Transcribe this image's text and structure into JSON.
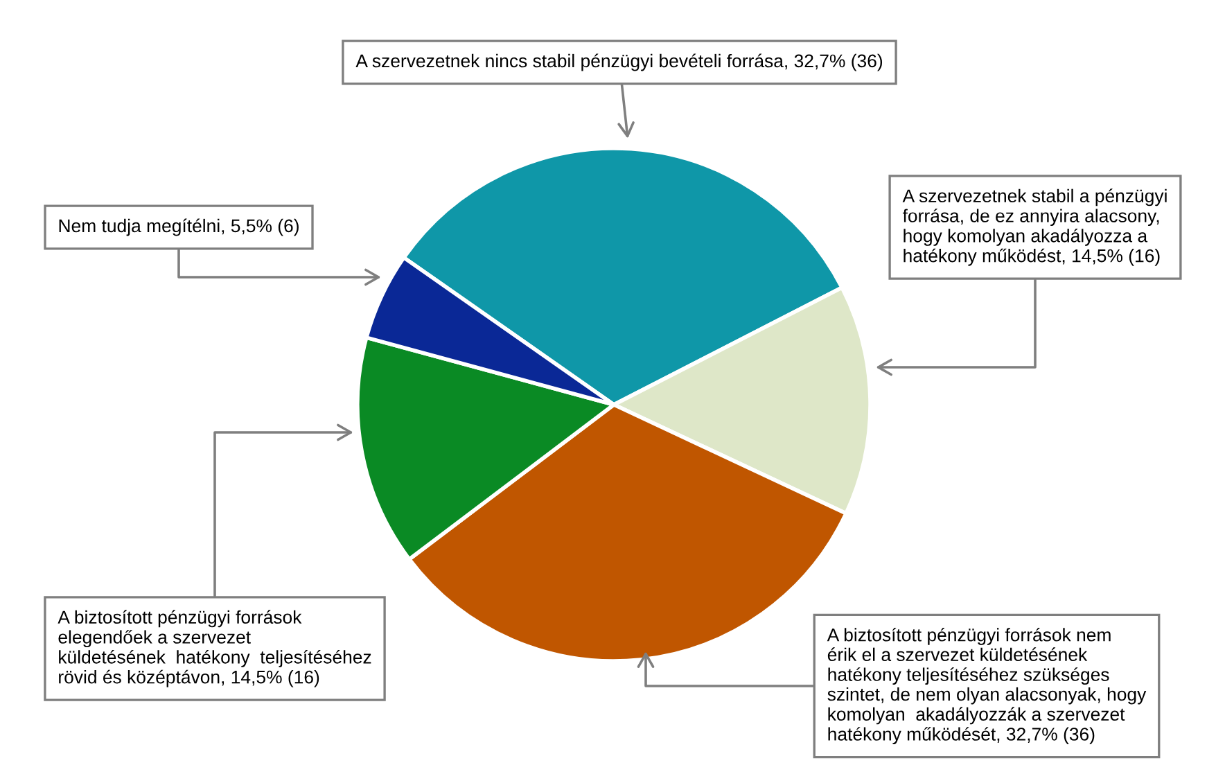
{
  "chart_data": {
    "type": "pie",
    "categories": [
      "A szervezetnek nincs stabil pénzügyi bevételi forrása, 32,7% (36)",
      "A szervezetnek stabil a pénzügyi\nforrása, de ez annyira alacsony,\nhogy komolyan akadályozza a\nhatékony működést, 14,5% (16)",
      "A biztosított pénzügyi források nem\nérik el a szervezet küldetésének\nhatékony teljesítéséhez szükséges\nszintet, de nem olyan alacsonyak, hogy\nkomolyan  akadályozzák a szervezet\nhatékony működését, 32,7% (36)",
      "A biztosított pénzügyi források\nelegendőek a szervezet\nküldetésének  hatékony  teljesítéséhez\nrövid és középtávon, 14,5% (16)",
      "Nem tudja megítélni, 5,5% (6)"
    ],
    "values": [
      32.7,
      14.5,
      32.7,
      14.5,
      5.5
    ],
    "colors": [
      "#0f97a8",
      "#dee7c8",
      "#c05600",
      "#0a8a24",
      "#0a2896"
    ],
    "legend": false
  }
}
